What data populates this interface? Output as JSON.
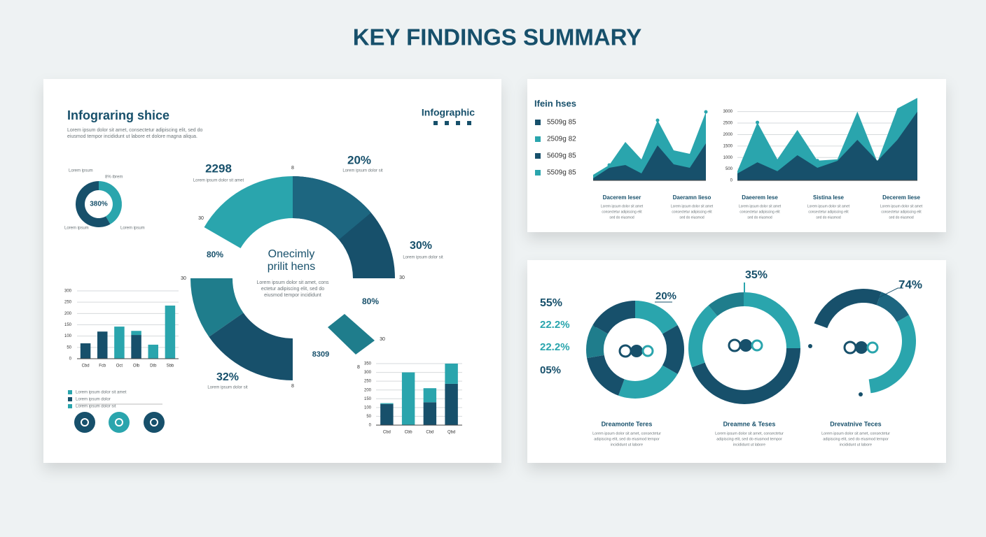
{
  "title": "KEY FINDINGS SUMMARY",
  "left": {
    "heading": "Infograring shice",
    "intro": [
      "Lorem ipsum dolor sit amet, consectetur adipiscing elit, sed do",
      "eiusmod tempor incididunt ut labore et dolore magna aliqua."
    ],
    "badge": "Infographic",
    "mini_donut_label": "380%",
    "mini_notes": [
      "Lorem ipsum",
      "8% ibrem",
      "Lorem ipsum",
      "Lorem ipsum"
    ],
    "ring_center": [
      "Onecimly",
      "prilit hens"
    ],
    "ring_text": [
      "Lorem ipsum dolor sit amet, cons",
      "ectetur adipiscing elit, sed do",
      "eiusmod tempor incididunt"
    ],
    "ring_labels": [
      "2298",
      "20%",
      "30%",
      "80%",
      "80%",
      "8309",
      "32%"
    ],
    "ring_notes": [
      "Lorem ipsum dolor sit amet",
      "Lorem ipsum dolor sit",
      "Lorem ipsum dolor sit",
      "Lorem ipsum dolor sit"
    ],
    "ring_ticks": [
      "8",
      "30",
      "30",
      "8",
      "30",
      "30",
      "8"
    ],
    "legend": [
      "Lorem ipsum dolor sit amet",
      "Lorem ipsum dolor",
      "Lorem ipsum dolor sit"
    ]
  },
  "chart_data": [
    {
      "type": "bar",
      "stacked": true,
      "categories": [
        "Cbd",
        "Fcb",
        "Oct",
        "Olb",
        "Dtb",
        "Sbb"
      ],
      "series": [
        {
          "color": "#17506b",
          "values": [
            68,
            120,
            0,
            105,
            0,
            0
          ]
        },
        {
          "color": "#2aa5ad",
          "values": [
            0,
            0,
            142,
            18,
            62,
            235
          ]
        }
      ],
      "ylim": [
        0,
        300
      ],
      "yticks": [
        0,
        50,
        100,
        150,
        200,
        250,
        300
      ],
      "grid": true
    },
    {
      "type": "bar",
      "stacked": true,
      "categories": [
        "Cbd",
        "Cbb",
        "Cbd",
        "Qbd"
      ],
      "series": [
        {
          "color": "#17506b",
          "values": [
            120,
            0,
            130,
            235
          ]
        },
        {
          "color": "#2aa5ad",
          "values": [
            5,
            300,
            80,
            115
          ]
        }
      ],
      "ylim": [
        0,
        350
      ],
      "yticks": [
        0,
        50,
        100,
        150,
        200,
        250,
        300,
        350
      ],
      "grid": true
    },
    {
      "type": "area",
      "categories": [
        null,
        null,
        null,
        null,
        null,
        null,
        null,
        null
      ],
      "series": [
        {
          "color": "#2aa5ad",
          "values": [
            8,
            22,
            55,
            30,
            86,
            43,
            38,
            98
          ]
        },
        {
          "color": "#17506b",
          "values": [
            3,
            18,
            22,
            10,
            50,
            23,
            18,
            53
          ]
        }
      ],
      "ylim": [
        0,
        100
      ],
      "yticks": [],
      "grid": false
    },
    {
      "type": "area",
      "categories": [
        null,
        null,
        null,
        null,
        null,
        null,
        null,
        null,
        null,
        null
      ],
      "series": [
        {
          "color": "#2aa5ad",
          "values": [
            400,
            2530,
            920,
            2200,
            860,
            920,
            3000,
            800,
            3140,
            3600
          ]
        },
        {
          "color": "#17506b",
          "values": [
            300,
            790,
            400,
            1100,
            550,
            850,
            1770,
            850,
            1770,
            3000
          ]
        }
      ],
      "ylim": [
        0,
        3600
      ],
      "yticks": [
        0,
        500,
        1000,
        1500,
        2000,
        2500,
        3000
      ],
      "grid": true
    }
  ],
  "top_right": {
    "legend_title": "Ifein hses",
    "legend": [
      "5509g 85",
      "2509g 82",
      "5609g 85",
      "5509g 85"
    ],
    "captions": [
      {
        "title": "Dacerem Ieser",
        "text": [
          "Lorem ipsum dolor sit amet",
          "consectetur adipiscing elit",
          "sed do eiusmod"
        ]
      },
      {
        "title": "Daeramn Iieso",
        "text": [
          "Lorem ipsum dolor sit amet",
          "consectetur adipiscing elit",
          "sed do eiusmod"
        ]
      },
      {
        "title": "Daeerem Iese",
        "text": [
          "Lorem ipsum dolor sit amet",
          "consectetur adipiscing elit",
          "sed do eiusmod"
        ]
      },
      {
        "title": "Sistina Iese",
        "text": [
          "Lorem ipsum dolor sit amet",
          "consectetur adipiscing elit",
          "sed do eiusmod"
        ]
      },
      {
        "title": "Decerem Iiese",
        "text": [
          "Lorem ipsum dolor sit amet",
          "consectetur adipiscing elit",
          "sed do eiusmod"
        ]
      }
    ]
  },
  "bottom_right": {
    "labels": [
      "35%",
      "20%",
      "74%",
      "55%",
      "22.2%",
      "22.2%",
      "05%"
    ],
    "captions": [
      {
        "title": "Dreamonte Teres",
        "text": [
          "Lorem ipsum dolor sit amet, consectetur",
          "adipiscing elit, sed do eiusmod tempor",
          "incididunt ut labore"
        ]
      },
      {
        "title": "Dreamne & Teses",
        "text": [
          "Lorem ipsum dolor sit amet, consectetur",
          "adipiscing elit, sed do eiusmod tempor",
          "incididunt ut labore"
        ]
      },
      {
        "title": "Drevatnive Teces",
        "text": [
          "Lorem ipsum dolor sit amet, consectetur",
          "adipiscing elit, sed do eiusmod tempor",
          "incididunt ut labore"
        ]
      }
    ]
  }
}
